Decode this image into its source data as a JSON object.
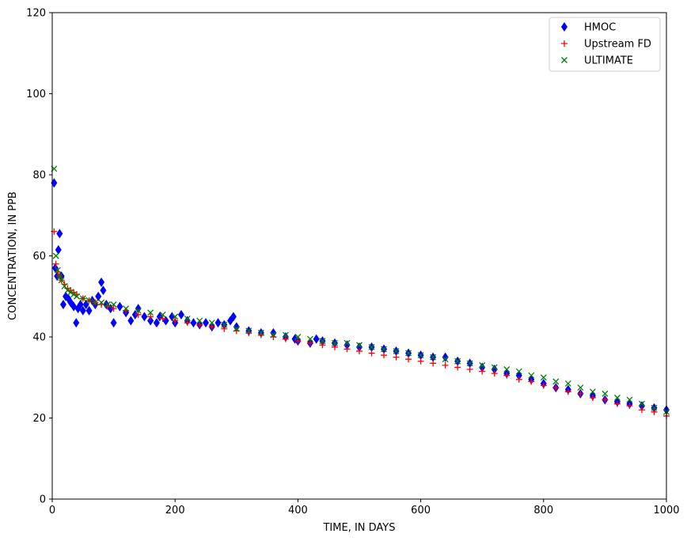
{
  "chart_data": {
    "type": "scatter",
    "title": "",
    "xlabel": "TIME, IN DAYS",
    "ylabel": "CONCENTRATION, IN PPB",
    "xlim": [
      0,
      1000
    ],
    "ylim": [
      0,
      120
    ],
    "xticks": [
      0,
      200,
      400,
      600,
      800,
      1000
    ],
    "yticks": [
      0,
      20,
      40,
      60,
      80,
      100,
      120
    ],
    "grid": false,
    "legend_position": "top-right",
    "series": [
      {
        "name": "HMOC",
        "marker": "thin-diamond",
        "color": "#0000ff",
        "x": [
          3,
          5,
          8,
          10,
          12,
          15,
          18,
          22,
          26,
          30,
          35,
          39,
          42,
          46,
          50,
          55,
          60,
          65,
          70,
          75,
          80,
          83,
          88,
          95,
          100,
          110,
          120,
          128,
          135,
          140,
          150,
          160,
          170,
          175,
          185,
          195,
          200,
          210,
          220,
          230,
          240,
          250,
          260,
          270,
          280,
          290,
          295,
          300,
          320,
          340,
          360,
          380,
          395,
          400,
          420,
          430,
          440,
          460,
          480,
          500,
          520,
          540,
          560,
          580,
          600,
          620,
          640,
          660,
          680,
          700,
          720,
          740,
          760,
          780,
          800,
          820,
          840,
          860,
          880,
          900,
          920,
          940,
          960,
          980,
          1000
        ],
        "y": [
          78,
          57,
          55,
          61.5,
          65.5,
          55,
          48,
          50,
          49.5,
          48.5,
          47.5,
          43.5,
          47,
          48,
          46.5,
          48,
          46.5,
          49,
          48,
          50,
          53.5,
          51.5,
          48,
          47,
          43.5,
          47.5,
          46,
          44,
          45.5,
          47,
          45,
          44,
          43.5,
          45,
          44,
          45,
          43.5,
          45.5,
          44,
          43.5,
          43,
          43.5,
          42.5,
          43.5,
          43,
          44,
          45,
          42.5,
          41.5,
          41,
          41,
          40,
          39.5,
          39,
          38.5,
          39.5,
          39,
          38.5,
          38,
          37.5,
          37.5,
          37,
          36.5,
          36,
          35.5,
          35,
          35,
          34,
          33.5,
          32.5,
          32,
          31,
          30.5,
          29.5,
          28.5,
          27.5,
          27,
          26,
          25.5,
          24.5,
          24,
          23.5,
          23,
          22.5,
          22
        ]
      },
      {
        "name": "Upstream FD",
        "marker": "plus",
        "color": "#ff0000",
        "x": [
          3,
          6,
          9,
          12,
          15,
          20,
          25,
          30,
          35,
          40,
          50,
          60,
          70,
          80,
          90,
          100,
          120,
          140,
          160,
          180,
          200,
          220,
          240,
          260,
          280,
          300,
          320,
          340,
          360,
          380,
          400,
          420,
          440,
          460,
          480,
          500,
          520,
          540,
          560,
          580,
          600,
          620,
          640,
          660,
          680,
          700,
          720,
          740,
          760,
          780,
          800,
          820,
          840,
          860,
          880,
          900,
          920,
          940,
          960,
          980,
          1000
        ],
        "y": [
          66,
          58,
          56,
          55,
          54,
          53,
          52,
          51.5,
          51,
          50.5,
          49.5,
          49,
          48.5,
          48,
          47.5,
          47,
          46.5,
          45.5,
          45,
          44.5,
          44,
          43.5,
          43,
          42.5,
          42,
          41.5,
          41,
          40.5,
          40,
          39.5,
          39,
          38.5,
          38,
          37.5,
          37,
          36.5,
          36,
          35.5,
          35,
          34.5,
          34,
          33.5,
          33,
          32.5,
          32,
          31.5,
          31,
          30.5,
          29.5,
          29,
          28,
          27.5,
          26.5,
          26,
          25,
          24.5,
          23.5,
          23,
          22,
          21.5,
          20.5
        ]
      },
      {
        "name": "ULTIMATE",
        "marker": "x",
        "color": "#008000",
        "x": [
          3,
          6,
          9,
          12,
          15,
          20,
          25,
          30,
          35,
          40,
          50,
          60,
          70,
          80,
          90,
          100,
          120,
          140,
          160,
          180,
          200,
          220,
          240,
          260,
          280,
          300,
          320,
          340,
          360,
          380,
          400,
          420,
          440,
          460,
          480,
          500,
          520,
          540,
          560,
          580,
          600,
          620,
          640,
          660,
          680,
          700,
          720,
          740,
          760,
          780,
          800,
          820,
          840,
          860,
          880,
          900,
          920,
          940,
          960,
          980,
          1000
        ],
        "y": [
          81.5,
          60,
          56.5,
          55,
          54,
          52.5,
          51.5,
          51,
          50.5,
          50,
          49.5,
          49,
          48.5,
          48.5,
          48,
          48,
          47,
          46.5,
          46,
          45.5,
          45,
          44.5,
          44,
          43.5,
          43,
          42,
          41.5,
          41,
          40.5,
          40.5,
          40,
          39.5,
          39,
          38.5,
          38.5,
          38,
          37.5,
          37,
          36.5,
          36,
          35.5,
          35,
          34.5,
          34,
          33.5,
          33,
          32.5,
          32,
          31.5,
          30.5,
          30,
          29,
          28.5,
          27.5,
          26.5,
          26,
          25,
          24.5,
          23.5,
          22.5,
          21.5
        ]
      }
    ]
  }
}
